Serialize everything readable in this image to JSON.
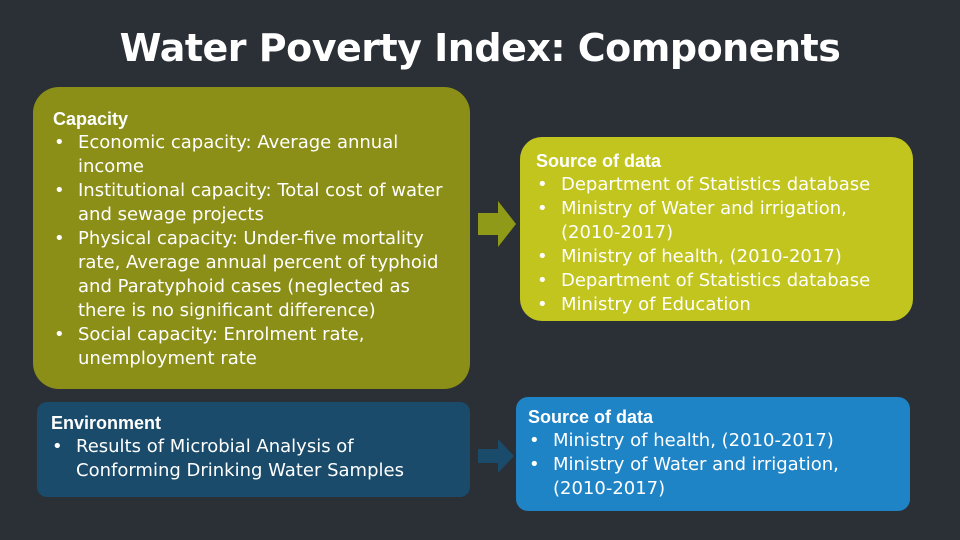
{
  "title": "Water Poverty Index: Components",
  "colors": {
    "background": "#2b2f36",
    "capacity_box": "#8b8f17",
    "environment_box": "#1a4b6b",
    "source_box_1": "#c1c51d",
    "source_box_2": "#1f84c6",
    "arrow_1": "#8e9a18",
    "arrow_2": "#1a4b6b"
  },
  "capacity": {
    "heading": "Capacity",
    "items": [
      "Economic capacity: Average annual income",
      "Institutional capacity: Total cost of water and sewage projects",
      "Physical capacity: Under-five mortality rate, Average annual percent of typhoid and Paratyphoid cases (neglected as there is no significant difference)",
      "Social capacity: Enrolment rate, unemployment rate"
    ]
  },
  "environment": {
    "heading": "Environment",
    "items": [
      "Results of Microbial Analysis of Conforming Drinking Water Samples"
    ]
  },
  "capacity_sources": {
    "heading": "Source of data",
    "items": [
      "Department of Statistics database",
      "Ministry of Water and irrigation, (2010-2017)",
      "Ministry of health, (2010-2017)",
      "Department of Statistics database",
      "Ministry of Education"
    ]
  },
  "environment_sources": {
    "heading": "Source of data",
    "items": [
      "Ministry of health, (2010-2017)",
      "Ministry of Water and irrigation, (2010-2017)"
    ]
  }
}
